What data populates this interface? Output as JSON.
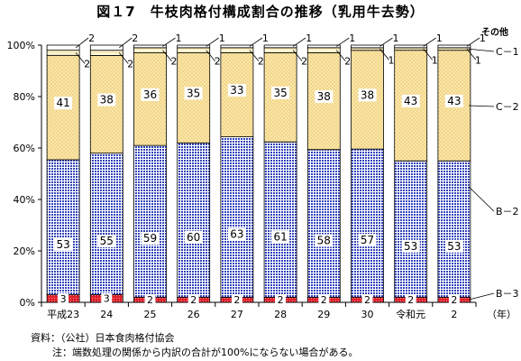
{
  "title": "図１7　牛枝肉格付構成割合の推移（乳用牛去勢）",
  "source_note": "資料：（公社）日本食肉格付協会",
  "footnote": "注：端数処理の関係から内訳の合計が100%にならない場合がある。",
  "chart_data": {
    "type": "bar",
    "stacked": true,
    "categories": [
      "平成23",
      "24",
      "25",
      "26",
      "27",
      "28",
      "29",
      "30",
      "令和元",
      "2"
    ],
    "x_unit": "（年）",
    "ylim": [
      0,
      100
    ],
    "y_ticks": [
      "0%",
      "20%",
      "40%",
      "60%",
      "80%",
      "100%"
    ],
    "series": [
      {
        "name": "B－3",
        "values": [
          3,
          3,
          2,
          2,
          2,
          2,
          2,
          2,
          2,
          2
        ],
        "labels": [
          "3",
          "3",
          "2",
          "2",
          "2",
          "2",
          "2",
          "2",
          "2",
          "2"
        ],
        "color": "#e0202a"
      },
      {
        "name": "B－2",
        "values": [
          53,
          55,
          59,
          60,
          63,
          61,
          58,
          57,
          53,
          53
        ],
        "labels": [
          "53",
          "55",
          "59",
          "60",
          "63",
          "61",
          "58",
          "57",
          "53",
          "53"
        ],
        "color": "#3344bb"
      },
      {
        "name": "C－2",
        "values": [
          41,
          38,
          36,
          35,
          33,
          35,
          38,
          38,
          43,
          43
        ],
        "labels": [
          "41",
          "38",
          "36",
          "35",
          "33",
          "35",
          "38",
          "38",
          "43",
          "43"
        ],
        "color": "#fbe7a8"
      },
      {
        "name": "C－1",
        "values": [
          2,
          2,
          2,
          2,
          2,
          2,
          2,
          1,
          1,
          1
        ],
        "labels": [
          "2",
          "2",
          "2",
          "2",
          "2",
          "2",
          "2",
          "1",
          "1",
          "1"
        ],
        "color": "#fff8d8"
      },
      {
        "name": "その他",
        "values": [
          2,
          2,
          1,
          1,
          1,
          1,
          1,
          1,
          1,
          1
        ],
        "labels": [
          "2",
          "2",
          "1",
          "1",
          "1",
          "1",
          "1",
          "1",
          "1",
          "1"
        ],
        "color": "#ffffff"
      }
    ],
    "legend_placement": "right, labels beside last bar"
  }
}
